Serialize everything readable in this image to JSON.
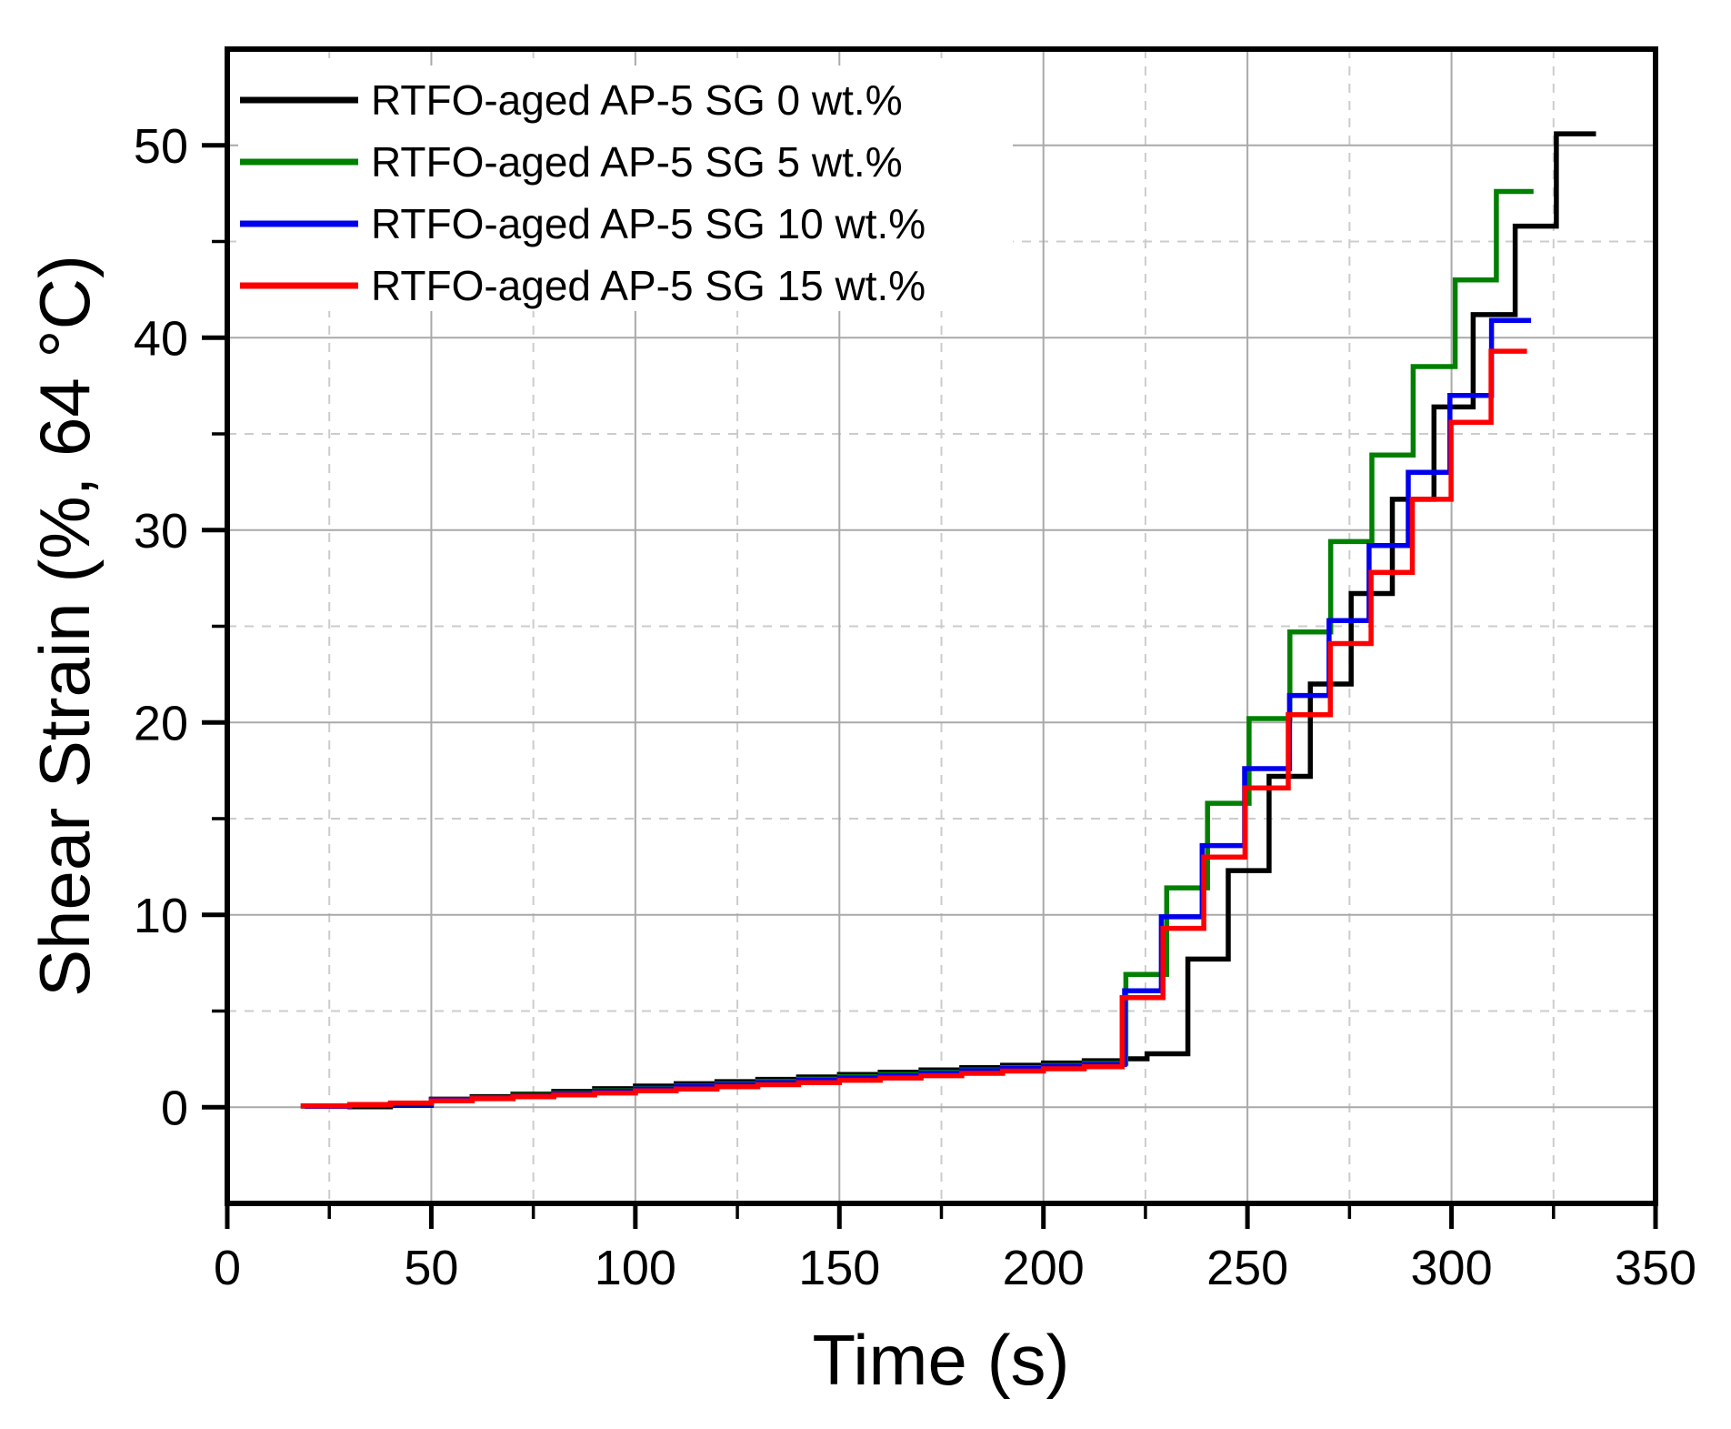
{
  "figure": {
    "background": "#ffffff",
    "frame_color": "#000000",
    "grid": {
      "major_color": "#a9a9a9",
      "minor_color": "#cccccc",
      "minor_dash": "10 9",
      "width": 2
    }
  },
  "chart_data": {
    "type": "line",
    "title": "",
    "xlabel": "Time (s)",
    "ylabel": "Shear Strain (%, 64 °C)",
    "xlim": [
      0,
      350
    ],
    "ylim": [
      -5,
      55
    ],
    "x_major_ticks": [
      0,
      50,
      100,
      150,
      200,
      250,
      300,
      350
    ],
    "y_major_ticks": [
      0,
      10,
      20,
      30,
      40,
      50
    ],
    "x_minor_step": 25,
    "y_minor_step": 5,
    "grid": true,
    "legend_position": "top-left",
    "line_width": 5.5,
    "series": [
      {
        "name": "RTFO-aged AP-5 SG 0 wt.%",
        "color": "#000000",
        "steps": [
          [
            18,
            0.06
          ],
          [
            30,
            0.02
          ],
          [
            40,
            0.1
          ],
          [
            50,
            0.42
          ],
          [
            60,
            0.55
          ],
          [
            70,
            0.68
          ],
          [
            80,
            0.82
          ],
          [
            90,
            0.96
          ],
          [
            100,
            1.1
          ],
          [
            110,
            1.22
          ],
          [
            120,
            1.33
          ],
          [
            130,
            1.45
          ],
          [
            140,
            1.57
          ],
          [
            150,
            1.7
          ],
          [
            160,
            1.82
          ],
          [
            170,
            1.94
          ],
          [
            180,
            2.06
          ],
          [
            190,
            2.18
          ],
          [
            200,
            2.3
          ],
          [
            210,
            2.42
          ],
          [
            220,
            2.52
          ],
          [
            225.4,
            2.78
          ],
          [
            235.4,
            7.7
          ],
          [
            245.3,
            12.3
          ],
          [
            255.3,
            17.2
          ],
          [
            265.4,
            22.0
          ],
          [
            275.4,
            26.7
          ],
          [
            285.5,
            31.6
          ],
          [
            295.7,
            36.4
          ],
          [
            305.3,
            41.2
          ],
          [
            315.6,
            45.8
          ],
          [
            325.7,
            50.6
          ]
        ],
        "end": 335.4
      },
      {
        "name": "RTFO-aged AP-5 SG 5 wt.%",
        "color": "#008000",
        "steps": [
          [
            19,
            0.05
          ],
          [
            30,
            0.1
          ],
          [
            40,
            0.18
          ],
          [
            50,
            0.38
          ],
          [
            60,
            0.5
          ],
          [
            70,
            0.62
          ],
          [
            80,
            0.74
          ],
          [
            90,
            0.86
          ],
          [
            100,
            0.98
          ],
          [
            110,
            1.1
          ],
          [
            120,
            1.22
          ],
          [
            130,
            1.34
          ],
          [
            140,
            1.46
          ],
          [
            150,
            1.58
          ],
          [
            160,
            1.7
          ],
          [
            170,
            1.82
          ],
          [
            180,
            1.94
          ],
          [
            190,
            2.06
          ],
          [
            200,
            2.17
          ],
          [
            210,
            2.28
          ],
          [
            220.2,
            6.9
          ],
          [
            230.2,
            11.4
          ],
          [
            240.2,
            15.8
          ],
          [
            250.4,
            20.2
          ],
          [
            260.4,
            24.7
          ],
          [
            270.4,
            29.4
          ],
          [
            280.5,
            33.9
          ],
          [
            290.6,
            38.5
          ],
          [
            300.9,
            43.0
          ],
          [
            311,
            47.6
          ]
        ],
        "end": 320.1
      },
      {
        "name": "RTFO-aged AP-5 SG 10 wt.%",
        "color": "#0000ee",
        "steps": [
          [
            19,
            0.05
          ],
          [
            30,
            0.09
          ],
          [
            40,
            0.16
          ],
          [
            50,
            0.35
          ],
          [
            60,
            0.47
          ],
          [
            70,
            0.59
          ],
          [
            80,
            0.71
          ],
          [
            90,
            0.83
          ],
          [
            100,
            0.95
          ],
          [
            110,
            1.06
          ],
          [
            120,
            1.17
          ],
          [
            130,
            1.28
          ],
          [
            140,
            1.4
          ],
          [
            150,
            1.52
          ],
          [
            160,
            1.64
          ],
          [
            170,
            1.77
          ],
          [
            180,
            1.9
          ],
          [
            190,
            2.01
          ],
          [
            200,
            2.12
          ],
          [
            210,
            2.22
          ],
          [
            219.9,
            6.05
          ],
          [
            228.9,
            9.9
          ],
          [
            238.9,
            13.6
          ],
          [
            249.3,
            17.6
          ],
          [
            260.3,
            21.4
          ],
          [
            270,
            25.3
          ],
          [
            279.8,
            29.2
          ],
          [
            289.4,
            33.0
          ],
          [
            299.6,
            37.0
          ],
          [
            309.8,
            40.9
          ]
        ],
        "end": 319.5
      },
      {
        "name": "RTFO-aged AP-5 SG 15 wt.%",
        "color": "#ff0000",
        "steps": [
          [
            18,
            0.07
          ],
          [
            30,
            0.14
          ],
          [
            40,
            0.22
          ],
          [
            50,
            0.33
          ],
          [
            60,
            0.44
          ],
          [
            70,
            0.54
          ],
          [
            80,
            0.64
          ],
          [
            90,
            0.74
          ],
          [
            100,
            0.85
          ],
          [
            110,
            0.95
          ],
          [
            120,
            1.06
          ],
          [
            130,
            1.17
          ],
          [
            140,
            1.28
          ],
          [
            150,
            1.4
          ],
          [
            160,
            1.52
          ],
          [
            170,
            1.64
          ],
          [
            180,
            1.76
          ],
          [
            190,
            1.88
          ],
          [
            200,
            2.0
          ],
          [
            210,
            2.1
          ],
          [
            219.3,
            5.7
          ],
          [
            229.3,
            9.3
          ],
          [
            239.3,
            13.0
          ],
          [
            249.4,
            16.6
          ],
          [
            260,
            20.4
          ],
          [
            270.3,
            24.1
          ],
          [
            280.3,
            27.8
          ],
          [
            290.4,
            31.6
          ],
          [
            299.9,
            35.6
          ],
          [
            309.7,
            39.3
          ]
        ],
        "end": 318.5
      }
    ]
  },
  "legend": {
    "entries": [
      {
        "label": "RTFO-aged AP-5 SG 0 wt.%",
        "color": "#000000"
      },
      {
        "label": "RTFO-aged AP-5 SG 5 wt.%",
        "color": "#008000"
      },
      {
        "label": "RTFO-aged AP-5 SG 10 wt.%",
        "color": "#0000ee"
      },
      {
        "label": "RTFO-aged AP-5 SG 15 wt.%",
        "color": "#ff0000"
      }
    ]
  }
}
